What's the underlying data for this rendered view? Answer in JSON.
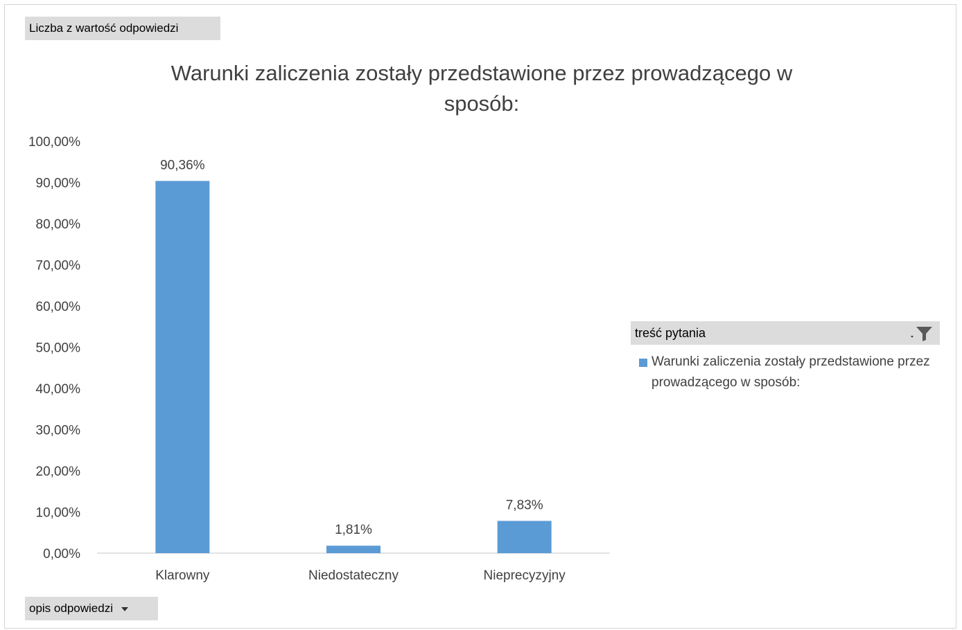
{
  "pivot": {
    "value_field_label": "Liczba z wartość odpowiedzi",
    "axis_field_label": "opis odpowiedzi"
  },
  "legend": {
    "header_label": "treść pytania",
    "filter_icon": "filter-icon",
    "entry_label": "Warunki zaliczenia zostały przedstawione przez prowadzącego w sposób:"
  },
  "colors": {
    "bar": "#5b9bd5",
    "axis_line": "#d9d9d9",
    "text": "#404040",
    "field_button": "#dcdcdc"
  },
  "chart_data": {
    "type": "bar",
    "title": "Warunki zaliczenia zostały przedstawione przez prowadzącego w sposób:",
    "categories": [
      "Klarowny",
      "Niedostateczny",
      "Nieprecyzyjny"
    ],
    "series": [
      {
        "name": "Warunki zaliczenia zostały przedstawione przez prowadzącego w sposób:",
        "values": [
          90.36,
          1.81,
          7.83
        ],
        "data_labels": [
          "90,36%",
          "1,81%",
          "7,83%"
        ]
      }
    ],
    "ylim": [
      0,
      100
    ],
    "y_ticks": [
      0,
      10,
      20,
      30,
      40,
      50,
      60,
      70,
      80,
      90,
      100
    ],
    "y_tick_labels": [
      "0,00%",
      "10,00%",
      "20,00%",
      "30,00%",
      "40,00%",
      "50,00%",
      "60,00%",
      "70,00%",
      "80,00%",
      "90,00%",
      "100,00%"
    ],
    "grid": false,
    "legend_position": "right"
  }
}
